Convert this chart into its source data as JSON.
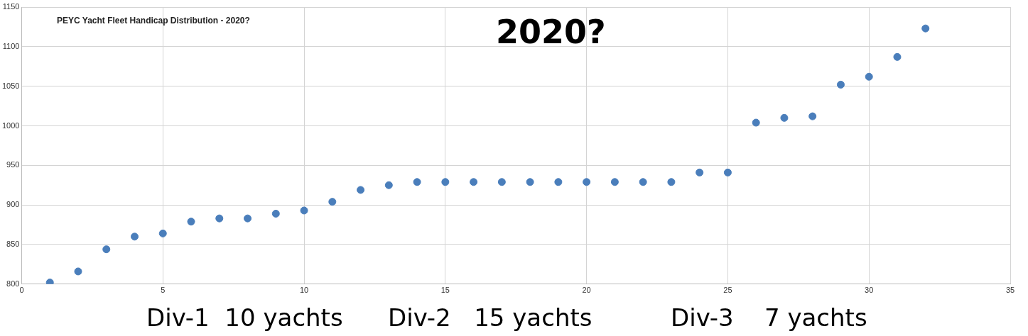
{
  "chart_data": {
    "type": "scatter",
    "title": "PEYC Yacht Fleet Handicap Distribution - 2020?",
    "x": [
      1,
      2,
      3,
      4,
      5,
      6,
      7,
      8,
      9,
      10,
      11,
      12,
      13,
      14,
      15,
      16,
      17,
      18,
      19,
      20,
      21,
      22,
      23,
      24,
      25,
      26,
      27,
      28,
      29,
      30,
      31,
      32
    ],
    "series": [
      {
        "color": "#4a7ebb",
        "values": [
          802,
          816,
          844,
          860,
          864,
          879,
          883,
          883,
          889,
          893,
          904,
          919,
          925,
          929,
          929,
          929,
          929,
          929,
          929,
          929,
          929,
          929,
          929,
          941,
          941,
          1004,
          1010,
          1012,
          1052,
          1062,
          1087,
          1123
        ]
      }
    ],
    "xlim": [
      0,
      35
    ],
    "xticks": [
      0,
      5,
      10,
      15,
      20,
      25,
      30,
      35
    ],
    "ylim": [
      800,
      1150
    ],
    "yticks": [
      800,
      850,
      900,
      950,
      1000,
      1050,
      1100,
      1150
    ],
    "grid": true,
    "legend": false,
    "marker": "circle",
    "annotations": [
      "2020?",
      "Div-1  10 yachts",
      "Div-2   15 yachts",
      "Div-3    7 yachts"
    ]
  }
}
